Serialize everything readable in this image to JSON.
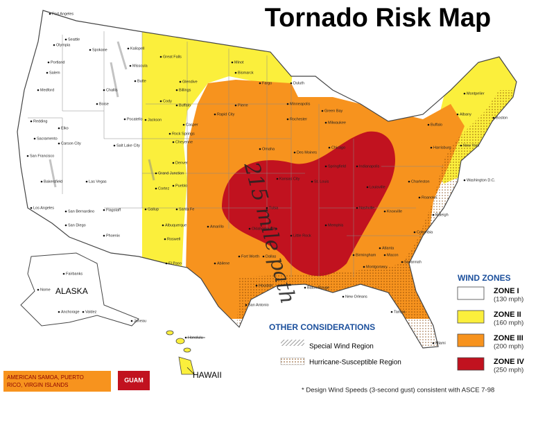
{
  "title": "Tornado Risk Map",
  "annotation": "215 mile path",
  "regions": [
    "ALASKA",
    "HAWAII"
  ],
  "cities": [
    "Port Angeles",
    "Seattle",
    "Olympia",
    "Spokane",
    "Kalispell",
    "Missoula",
    "Great Falls",
    "Portland",
    "Salem",
    "Butte",
    "Glendive",
    "Billings",
    "Minot",
    "Bismarck",
    "Fargo",
    "Duluth",
    "Medford",
    "Challis",
    "Boise",
    "Cody",
    "Buffalo",
    "Pierre",
    "Minneapolis",
    "Green Bay",
    "Montpelier",
    "Albany",
    "Boston",
    "Redding",
    "Pocatello",
    "Jackson",
    "Rapid City",
    "Casper",
    "Rochester",
    "Milwaukee",
    "Buffalo",
    "Elko",
    "Sacramento",
    "Carson City",
    "Rock Springs",
    "Cheyenne",
    "Salt Lake City",
    "Omaha",
    "Des Moines",
    "Chicago",
    "Harrisburg",
    "New York",
    "San Francisco",
    "Denver",
    "Grand Junction",
    "Springfield",
    "Washington D.C.",
    "Bakersfield",
    "Las Vegas",
    "Pueblo",
    "Cortez",
    "Kansas City",
    "Charleston",
    "Roanoke",
    "Los Angeles",
    "San Bernardino",
    "Flagstaff",
    "Gallup",
    "Santa Fe",
    "Amarillo",
    "San Diego",
    "Albuquerque",
    "Raleigh",
    "Phoenix",
    "Roswell",
    "Columbia",
    "Atlanta",
    "Macon",
    "Birmingham",
    "Fort Worth",
    "Dallas",
    "Abilene",
    "El Paso",
    "Montgomery",
    "Savannah",
    "Houston",
    "Baton Rouge",
    "New Orleans",
    "San Antonio",
    "Tampa",
    "Miami",
    "Fairbanks",
    "Nome",
    "Anchorage",
    "Valdez",
    "Juneau",
    "Honolulu",
    "St. Louis",
    "Louisville",
    "Nashville",
    "Memphis",
    "Little Rock",
    "Oklahoma City",
    "Tulsa",
    "Indianapolis",
    "Knoxville"
  ],
  "wind_zones": {
    "title": "WIND ZONES",
    "zones": [
      {
        "name": "ZONE I",
        "speed": "(130 mph)"
      },
      {
        "name": "ZONE II",
        "speed": "(160 mph)"
      },
      {
        "name": "ZONE III",
        "speed": "(200 mph)"
      },
      {
        "name": "ZONE IV",
        "speed": "(250 mph)"
      }
    ]
  },
  "other_considerations": {
    "title": "OTHER CONSIDERATIONS",
    "items": [
      "Special Wind Region",
      "Hurricane-Susceptible Region"
    ]
  },
  "territories": [
    [
      "AMERICAN SAMOA, PUERTO",
      "RICO, VIRGIN ISLANDS"
    ],
    [
      "GUAM"
    ]
  ],
  "footnote": "* Design Wind Speeds (3-second gust) consistent with ASCE 7-98"
}
